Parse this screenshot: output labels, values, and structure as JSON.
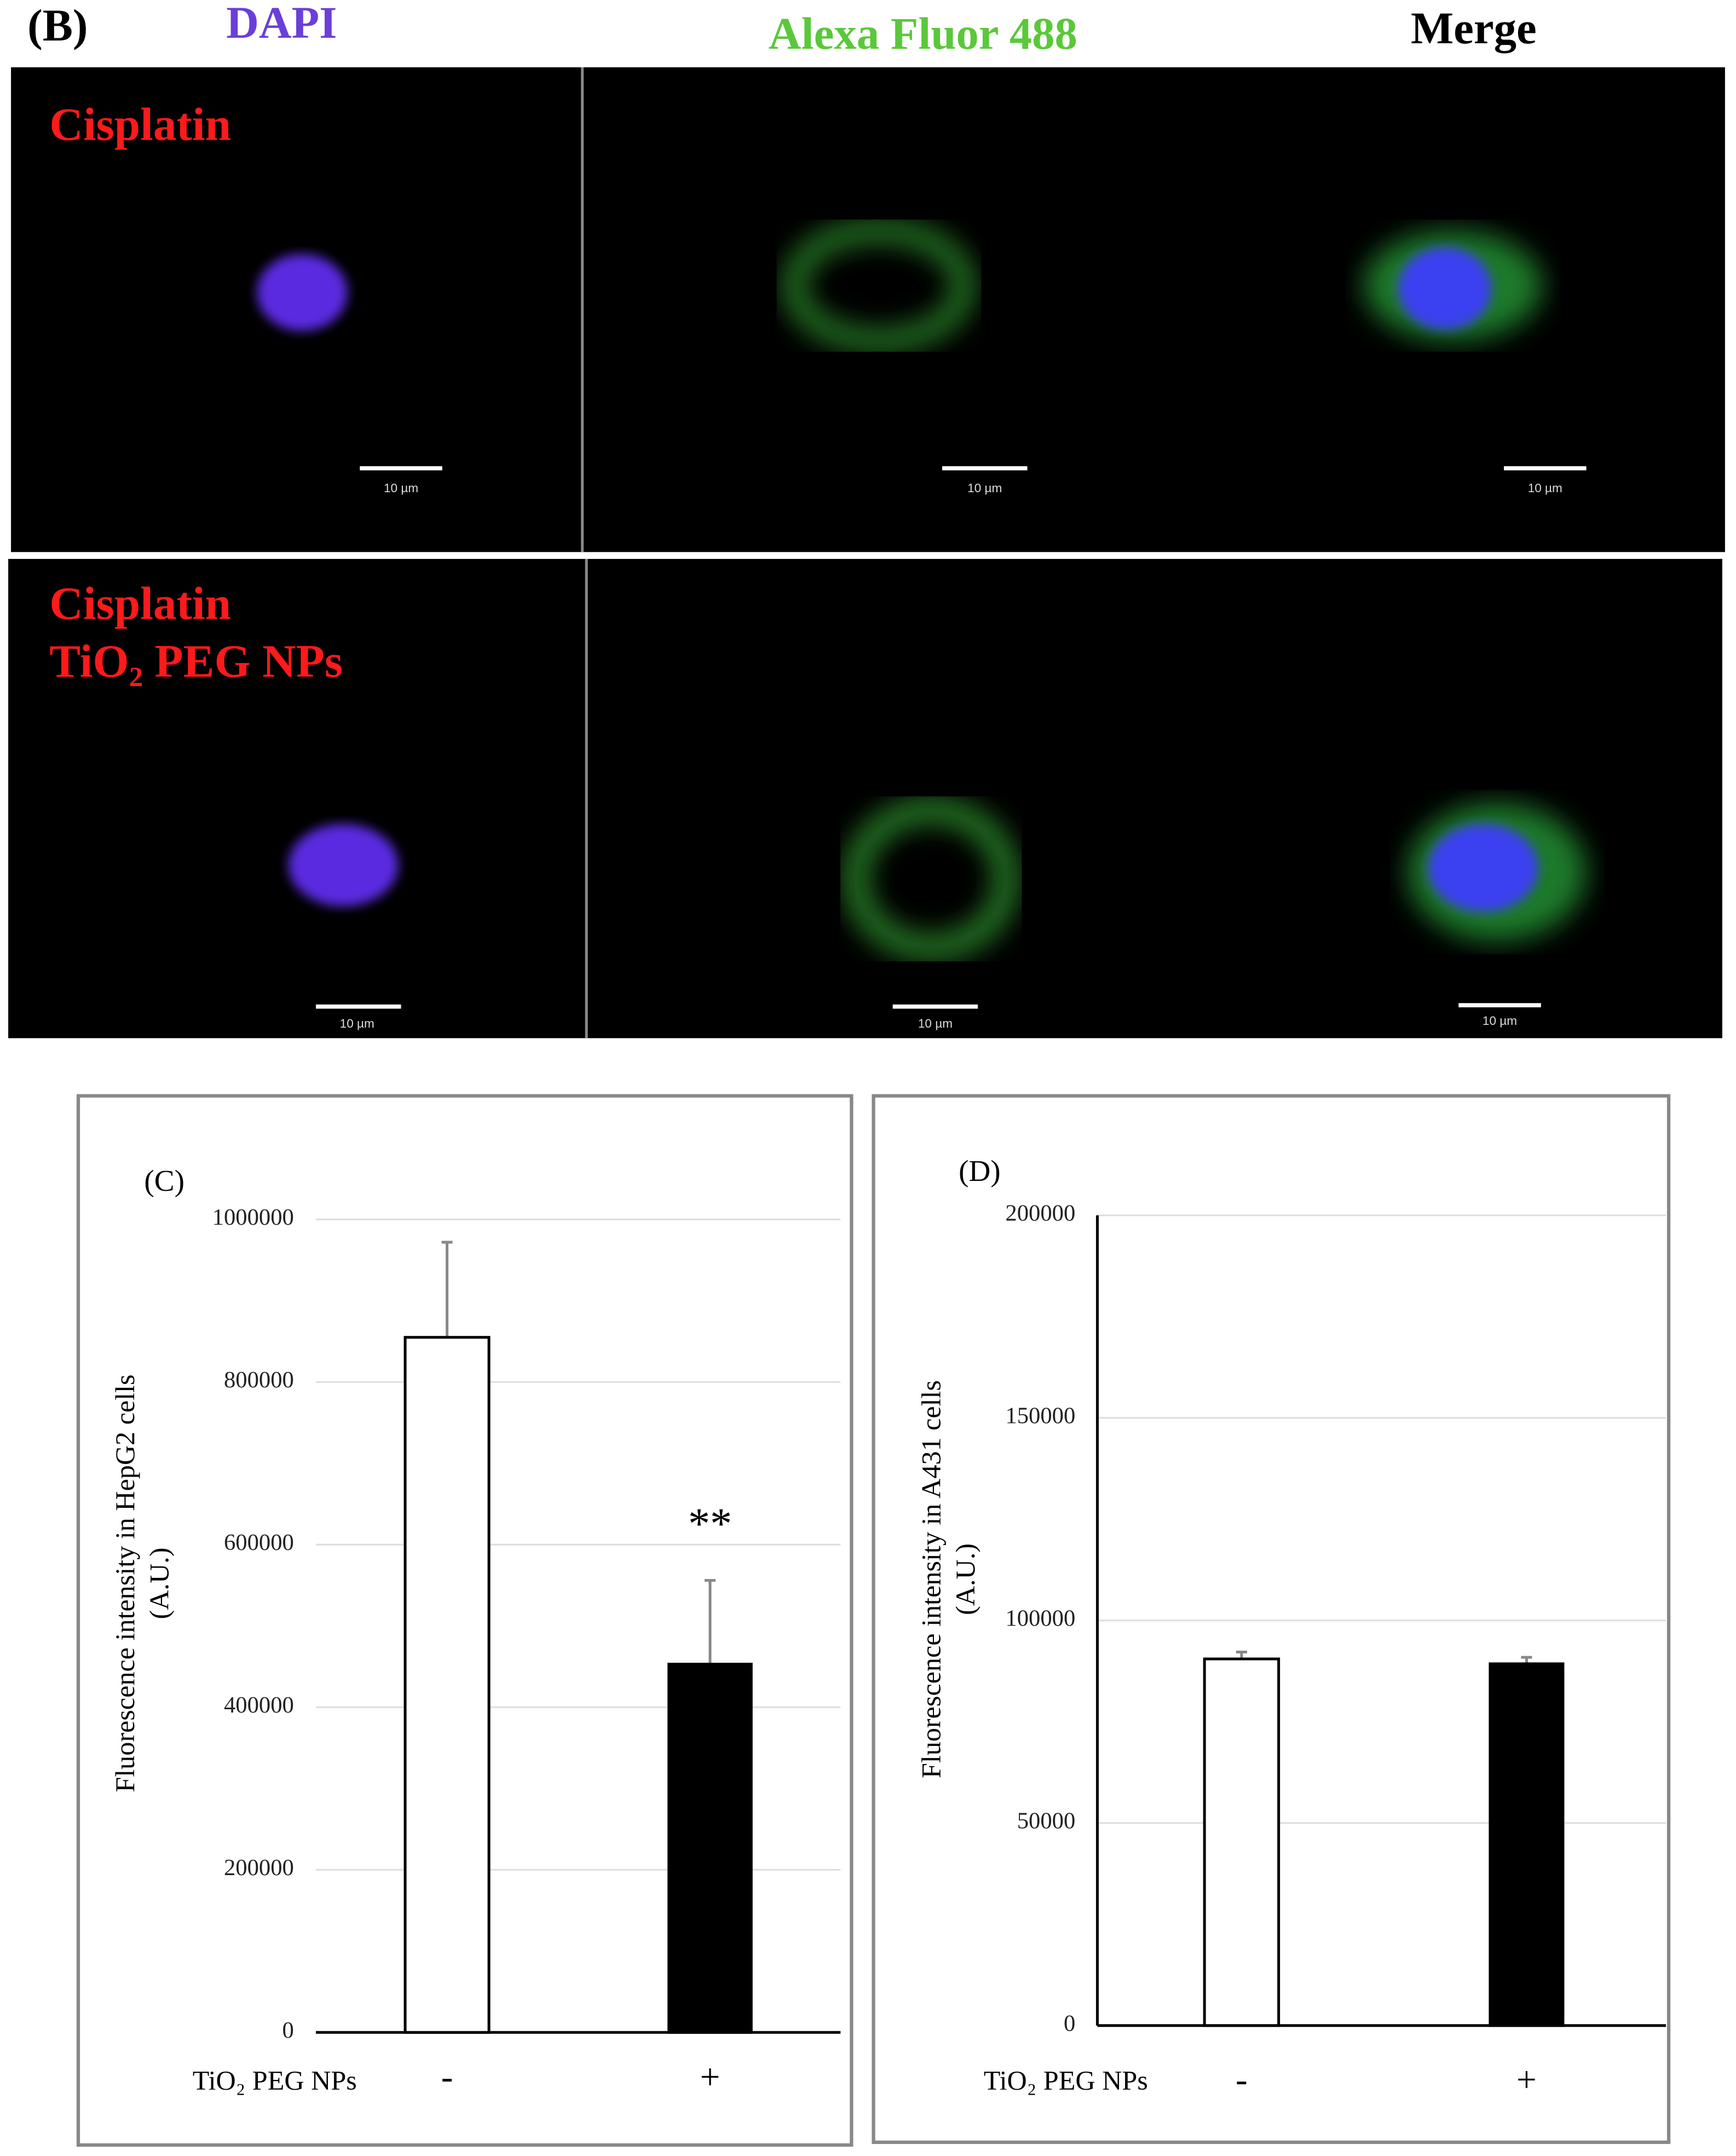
{
  "panel_b": {
    "label": "(B)",
    "columns": [
      "DAPI",
      "Alexa Fluor 488",
      "Merge"
    ],
    "rows": [
      [
        "Cisplatin"
      ],
      [
        "Cisplatin",
        "TiO₂ PEG NPs"
      ]
    ],
    "scale_bar": "10 µm"
  },
  "chart_data": [
    {
      "type": "bar",
      "label": "(C)",
      "ylabel": [
        "Fluorescence intensity in HepG2 cells",
        "(A.U.)"
      ],
      "xlabel": "TiO₂ PEG NPs",
      "categories": [
        "-",
        "+"
      ],
      "values": [
        855000,
        453000
      ],
      "errors": [
        117000,
        103000
      ],
      "colors": [
        "#ffffff",
        "#000000"
      ],
      "annotation": "**",
      "ylim": [
        0,
        1000000
      ],
      "yticks": [
        0,
        200000,
        400000,
        600000,
        800000,
        1000000
      ],
      "grid": true,
      "y_axis_line": false
    },
    {
      "type": "bar",
      "label": "(D)",
      "ylabel": [
        "Fluorescence intensity in A431 cells",
        "(A.U.)"
      ],
      "xlabel": "TiO₂ PEG NPs",
      "categories": [
        "-",
        "+"
      ],
      "values": [
        90500,
        89300
      ],
      "errors": [
        1700,
        1600
      ],
      "colors": [
        "#ffffff",
        "#000000"
      ],
      "ylim": [
        0,
        200000
      ],
      "yticks": [
        0,
        50000,
        100000,
        150000,
        200000
      ],
      "grid": true,
      "y_axis_line": true
    }
  ]
}
